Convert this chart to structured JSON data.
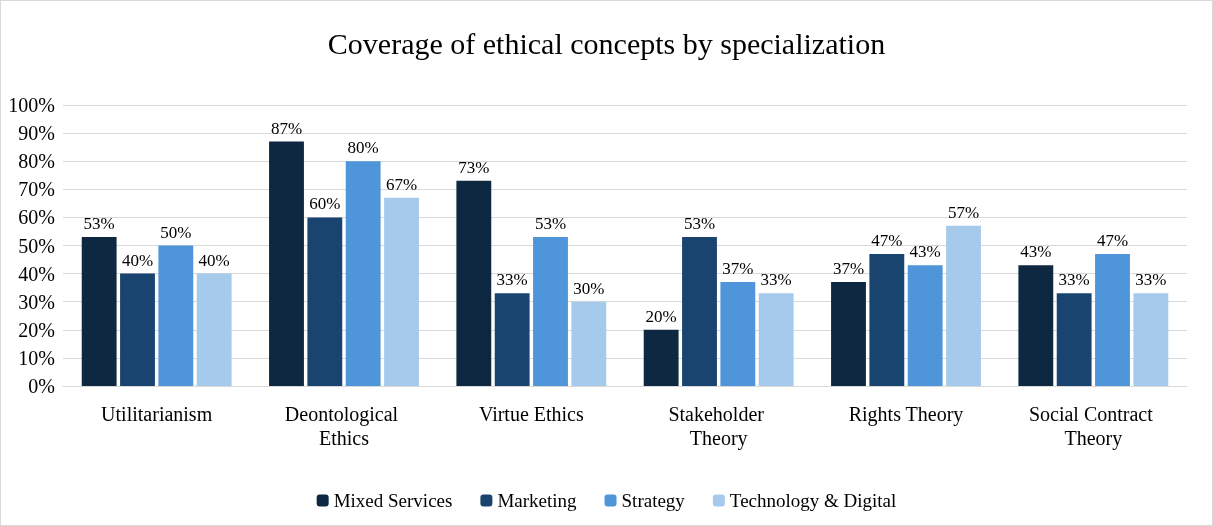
{
  "chart_data": {
    "type": "bar",
    "title": "Coverage of ethical concepts by specialization",
    "categories": [
      "Utilitarianism",
      "Deontological Ethics",
      "Virtue Ethics",
      "Stakeholder Theory",
      "Rights Theory",
      "Social Contract Theory"
    ],
    "series": [
      {
        "name": "Mixed Services",
        "color": "#0e2841",
        "values": [
          53,
          87,
          73,
          20,
          37,
          43
        ],
        "value_labels": [
          "53%",
          "87%",
          "73%",
          "20%",
          "37%",
          "43%"
        ]
      },
      {
        "name": "Marketing",
        "color": "#1a4470",
        "values": [
          40,
          60,
          33,
          53,
          47,
          33
        ],
        "value_labels": [
          "40%",
          "60%",
          "33%",
          "53%",
          "47%",
          "33%"
        ]
      },
      {
        "name": "Strategy",
        "color": "#4e95d9",
        "values": [
          50,
          80,
          53,
          37,
          43,
          47
        ],
        "value_labels": [
          "50%",
          "80%",
          "53%",
          "37%",
          "43%",
          "47%"
        ]
      },
      {
        "name": "Technology & Digital",
        "color": "#a6caec",
        "values": [
          40,
          67,
          30,
          33,
          57,
          33
        ],
        "value_labels": [
          "40%",
          "67%",
          "30%",
          "33%",
          "57%",
          "33%"
        ]
      }
    ],
    "ylim": [
      0,
      100
    ],
    "yticks": [
      {
        "value": 0,
        "label": "0%"
      },
      {
        "value": 10,
        "label": "10%"
      },
      {
        "value": 20,
        "label": "20%"
      },
      {
        "value": 30,
        "label": "30%"
      },
      {
        "value": 40,
        "label": "40%"
      },
      {
        "value": 50,
        "label": "50%"
      },
      {
        "value": 60,
        "label": "60%"
      },
      {
        "value": 70,
        "label": "70%"
      },
      {
        "value": 80,
        "label": "80%"
      },
      {
        "value": 90,
        "label": "90%"
      },
      {
        "value": 100,
        "label": "100%"
      }
    ],
    "grid": "y",
    "legend": "bottom"
  }
}
